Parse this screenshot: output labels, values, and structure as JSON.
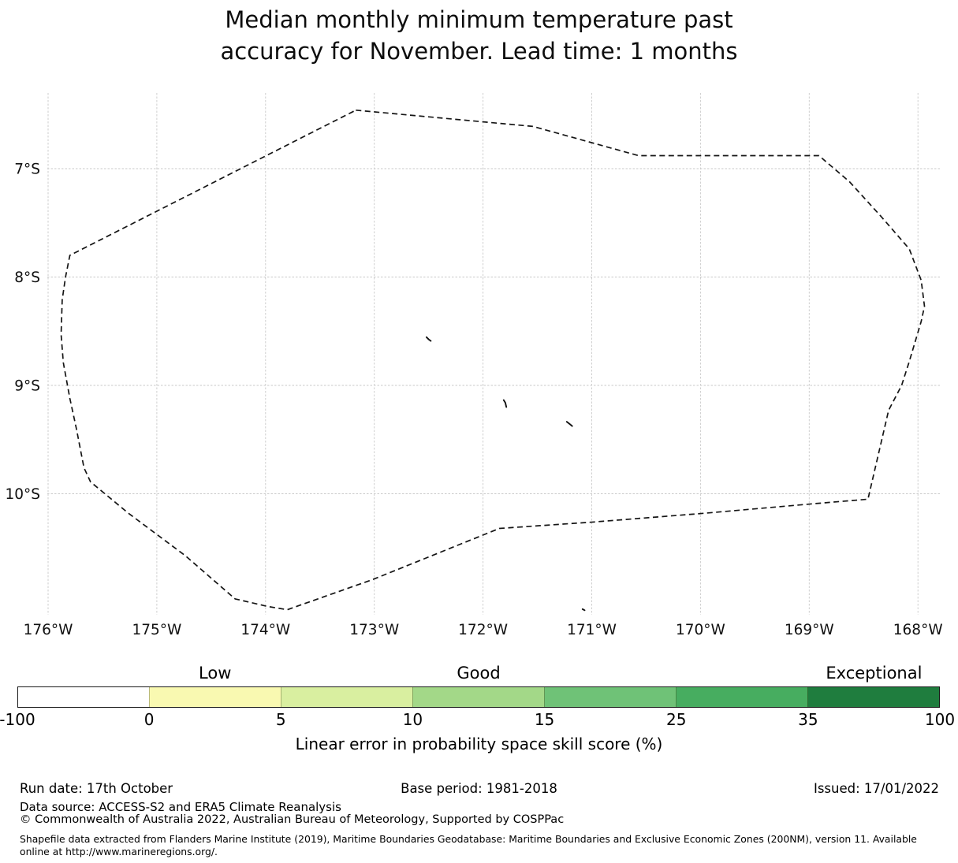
{
  "title": {
    "line1": "Median monthly minimum temperature past",
    "line2": "accuracy for November. Lead time: 1 months"
  },
  "chart_data": {
    "type": "map",
    "title": "Median monthly minimum temperature past accuracy for November. Lead time: 1 months",
    "description": "Dashed EEZ boundary outline around Tokelau with small atoll marks, on a lon/lat graticule",
    "x_axis": {
      "ticks": [
        {
          "label": "176°W",
          "lonW": 176
        },
        {
          "label": "175°W",
          "lonW": 175
        },
        {
          "label": "174°W",
          "lonW": 174
        },
        {
          "label": "173°W",
          "lonW": 173
        },
        {
          "label": "172°W",
          "lonW": 172
        },
        {
          "label": "171°W",
          "lonW": 171
        },
        {
          "label": "170°W",
          "lonW": 170
        },
        {
          "label": "169°W",
          "lonW": 169
        },
        {
          "label": "168°W",
          "lonW": 168
        }
      ]
    },
    "y_axis": {
      "ticks": [
        {
          "label": "7°S",
          "latS": 7
        },
        {
          "label": "8°S",
          "latS": 8
        },
        {
          "label": "9°S",
          "latS": 9
        },
        {
          "label": "10°S",
          "latS": 10
        }
      ]
    },
    "boundary_polygon": [
      [
        173.17,
        6.46
      ],
      [
        171.54,
        6.61
      ],
      [
        170.57,
        6.88
      ],
      [
        168.91,
        6.88
      ],
      [
        168.63,
        7.12
      ],
      [
        168.34,
        7.44
      ],
      [
        168.08,
        7.74
      ],
      [
        167.97,
        8.03
      ],
      [
        167.94,
        8.27
      ],
      [
        167.97,
        8.41
      ],
      [
        168.08,
        8.78
      ],
      [
        168.15,
        9.0
      ],
      [
        168.27,
        9.23
      ],
      [
        168.39,
        9.75
      ],
      [
        168.46,
        10.05
      ],
      [
        168.94,
        10.09
      ],
      [
        169.97,
        10.18
      ],
      [
        170.98,
        10.26
      ],
      [
        171.85,
        10.32
      ],
      [
        173.01,
        10.79
      ],
      [
        173.8,
        11.07
      ],
      [
        173.98,
        11.04
      ],
      [
        174.28,
        10.97
      ],
      [
        174.74,
        10.57
      ],
      [
        175.26,
        10.18
      ],
      [
        175.61,
        9.89
      ],
      [
        175.67,
        9.76
      ],
      [
        175.74,
        9.4
      ],
      [
        175.8,
        9.12
      ],
      [
        175.86,
        8.79
      ],
      [
        175.88,
        8.53
      ],
      [
        175.87,
        8.21
      ],
      [
        175.84,
        8.0
      ],
      [
        175.8,
        7.8
      ]
    ],
    "islands": [
      {
        "name": "atafu",
        "points": [
          [
            172.52,
            8.555
          ],
          [
            172.5,
            8.575
          ],
          [
            172.48,
            8.59
          ]
        ]
      },
      {
        "name": "nukunonu",
        "points": [
          [
            171.81,
            9.135
          ],
          [
            171.795,
            9.16
          ],
          [
            171.785,
            9.2
          ]
        ]
      },
      {
        "name": "fakaofo",
        "points": [
          [
            171.23,
            9.335
          ],
          [
            171.205,
            9.355
          ],
          [
            171.18,
            9.375
          ]
        ]
      },
      {
        "name": "swains",
        "points": [
          [
            171.085,
            11.065
          ],
          [
            171.065,
            11.075
          ]
        ]
      }
    ],
    "colorbar": {
      "caption": "Linear error in probability space skill score (%)",
      "boundaries": [
        -100,
        0,
        5,
        10,
        15,
        25,
        35,
        100
      ],
      "tick_labels": [
        "-100",
        "0",
        "5",
        "10",
        "15",
        "25",
        "35",
        "100"
      ],
      "segment_colors": [
        "#ffffff",
        "#f9f9b1",
        "#d9efa0",
        "#a3d888",
        "#6fc277",
        "#47ad60",
        "#1f7d3e"
      ],
      "categories": [
        {
          "label": "Low",
          "segment_index": 1
        },
        {
          "label": "Good",
          "segment_index": 3
        },
        {
          "label": "Exceptional",
          "segment_index": 6
        }
      ]
    }
  },
  "footer": {
    "run_date": "Run date: 17th October",
    "base_period": "Base period: 1981-2018",
    "issued": "Issued: 17/01/2022",
    "data_source": "Data source: ACCESS-S2 and ERA5 Climate Reanalysis",
    "copyright": "© Commonwealth of Australia 2022, Australian Bureau of Meteorology, Supported by COSPPac",
    "shapefile_note": "Shapefile data extracted from Flanders Marine Institute (2019), Maritime Boundaries Geodatabase: Maritime Boundaries and Exclusive Economic Zones (200NM), version 11. Available online at http://www.marineregions.org/."
  }
}
